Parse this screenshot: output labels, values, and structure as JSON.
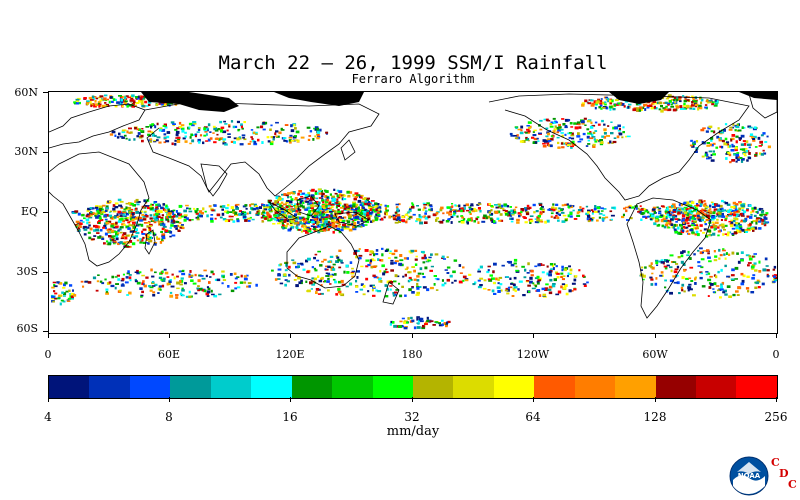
{
  "title": "March 22 – 26, 1999 SSM/I Rainfall",
  "subtitle": "Ferraro Algorithm",
  "map": {
    "lat_labels": [
      "60N",
      "30N",
      "EQ",
      "30S",
      "60S"
    ],
    "lon_labels": [
      "0",
      "60E",
      "120E",
      "180",
      "120W",
      "60W",
      "0"
    ],
    "land_color": "#ffffff",
    "no_data_color": "#000000"
  },
  "colorbar": {
    "labels": [
      "4",
      "8",
      "16",
      "32",
      "64",
      "128",
      "256"
    ],
    "units": "mm/day",
    "colors": [
      "#00147a",
      "#0030b8",
      "#0048ff",
      "#009a9a",
      "#00cccc",
      "#00ffff",
      "#009600",
      "#00c800",
      "#00ff00",
      "#b4b400",
      "#dcdc00",
      "#ffff00",
      "#ff5a00",
      "#ff7d00",
      "#ffa000",
      "#960000",
      "#c80000",
      "#ff0000"
    ]
  },
  "logo": {
    "name": "NOAA",
    "cdc_letters": [
      "C",
      "D",
      "C"
    ]
  }
}
